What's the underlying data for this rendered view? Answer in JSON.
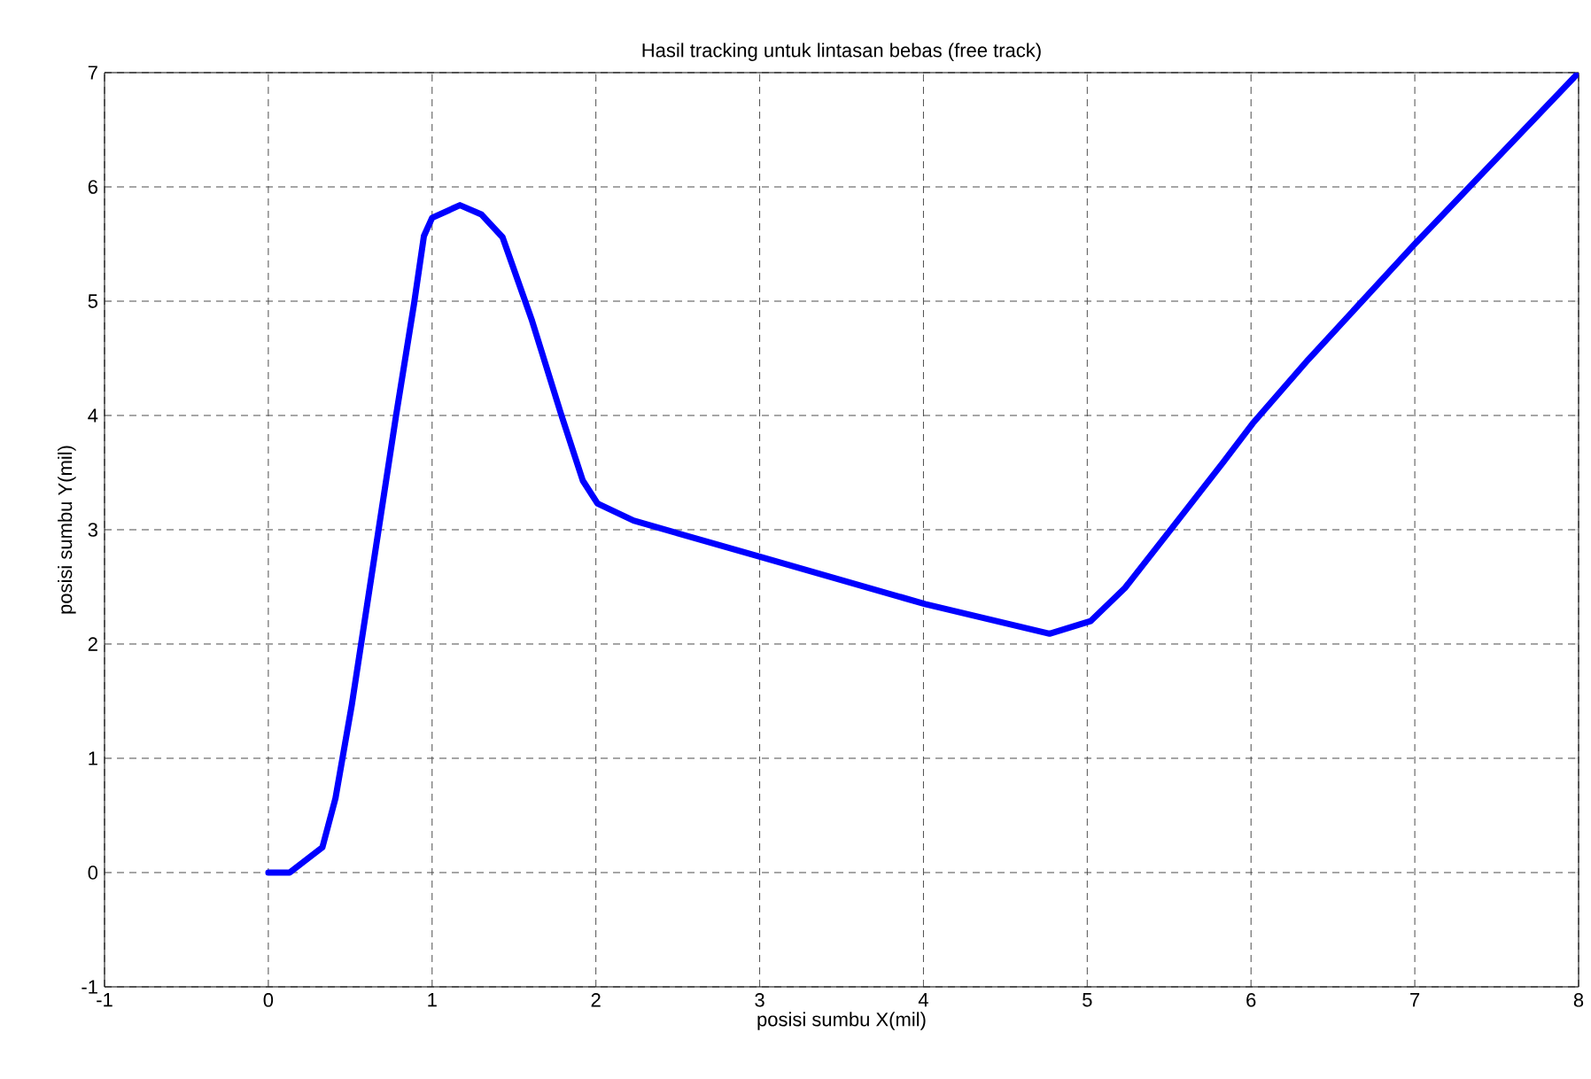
{
  "chart_data": {
    "type": "line",
    "title": "Hasil tracking untuk lintasan bebas (free track)",
    "xlabel": "posisi sumbu X(mil)",
    "ylabel": "posisi sumbu Y(mil)",
    "xlim": [
      -1,
      8
    ],
    "ylim": [
      -1,
      7
    ],
    "xticks": [
      -1,
      0,
      1,
      2,
      3,
      4,
      5,
      6,
      7,
      8
    ],
    "yticks": [
      -1,
      0,
      1,
      2,
      3,
      4,
      5,
      6,
      7
    ],
    "grid": true,
    "series": [
      {
        "color": "#0000ff",
        "line_style": "solid",
        "x": [
          0,
          0.13,
          0.33,
          0.41,
          0.51,
          0.67,
          0.78,
          0.89,
          0.95,
          1.0,
          1.17,
          1.3,
          1.43,
          1.61,
          1.79,
          1.92,
          2.01,
          2.23,
          3.01,
          4.01,
          4.77,
          5.02,
          5.23,
          5.52,
          5.83,
          6.01,
          6.35,
          7.0,
          8.0
        ],
        "values": [
          0,
          0,
          0.22,
          0.65,
          1.47,
          2.97,
          4.0,
          4.98,
          5.57,
          5.73,
          5.84,
          5.76,
          5.56,
          4.83,
          4.0,
          3.43,
          3.23,
          3.08,
          2.76,
          2.35,
          2.09,
          2.2,
          2.49,
          3.02,
          3.59,
          3.93,
          4.49,
          5.5,
          7.0
        ]
      }
    ]
  }
}
